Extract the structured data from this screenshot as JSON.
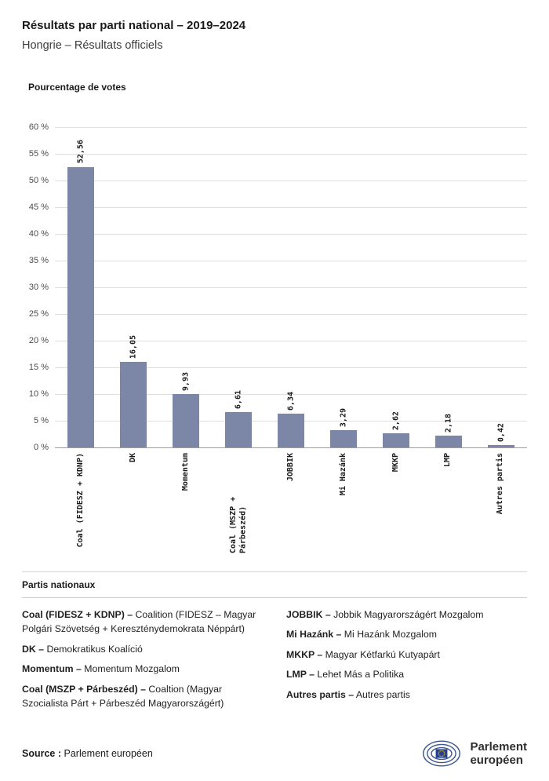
{
  "header": {
    "title": "Résultats par parti national – 2019–2024",
    "subtitle": "Hongrie – Résultats officiels"
  },
  "chart_data": {
    "type": "bar",
    "title": "Pourcentage de votes",
    "categories": [
      "Coal (FIDESZ + KDNP)",
      "DK",
      "Momentum",
      "Coal (MSZP + Párbeszéd)",
      "JOBBIK",
      "Mi Hazánk",
      "MKKP",
      "LMP",
      "Autres partis"
    ],
    "values": [
      52.56,
      16.05,
      9.93,
      6.61,
      6.34,
      3.29,
      2.62,
      2.18,
      0.42
    ],
    "value_labels": [
      "52,56",
      "16,05",
      "9,93",
      "6,61",
      "6,34",
      "3,29",
      "2,62",
      "2,18",
      "0,42"
    ],
    "xlabel": "",
    "ylabel": "",
    "ylim": [
      0,
      60
    ],
    "ytick_step": 5,
    "ytick_suffix": " %",
    "grid": true,
    "legend_position": "none",
    "bar_color": "#7c86a6"
  },
  "legend": {
    "heading": "Partis nationaux",
    "columns": [
      {
        "items": [
          {
            "term": "Coal (FIDESZ + KDNP)",
            "definition": "Coalition (FIDESZ – Magyar Polgári Szövetség + Kereszténydemokrata Néppárt)"
          },
          {
            "term": "DK",
            "definition": "Demokratikus Koalíció"
          },
          {
            "term": "Momentum",
            "definition": "Momentum Mozgalom"
          },
          {
            "term": "Coal (MSZP + Párbeszéd)",
            "definition": "Coaltion (Magyar Szocialista Párt + Párbeszéd Magyarországért)"
          }
        ]
      },
      {
        "items": [
          {
            "term": "JOBBIK",
            "definition": "Jobbik Magyarországért Mozgalom"
          },
          {
            "term": "Mi Hazánk",
            "definition": "Mi Hazánk Mozgalom"
          },
          {
            "term": "MKKP",
            "definition": "Magyar Kétfarkú Kutyapárt"
          },
          {
            "term": "LMP",
            "definition": "Lehet Más a Politika"
          },
          {
            "term": "Autres partis",
            "definition": "Autres partis"
          }
        ]
      }
    ]
  },
  "footer": {
    "source_label": "Source :",
    "source_value": "Parlement européen",
    "logo_line1": "Parlement",
    "logo_line2": "européen"
  },
  "colors": {
    "bar": "#7c86a6",
    "logo_blue": "#3a568f",
    "flag_blue": "#24408f",
    "star_yellow": "#ffcc00"
  }
}
